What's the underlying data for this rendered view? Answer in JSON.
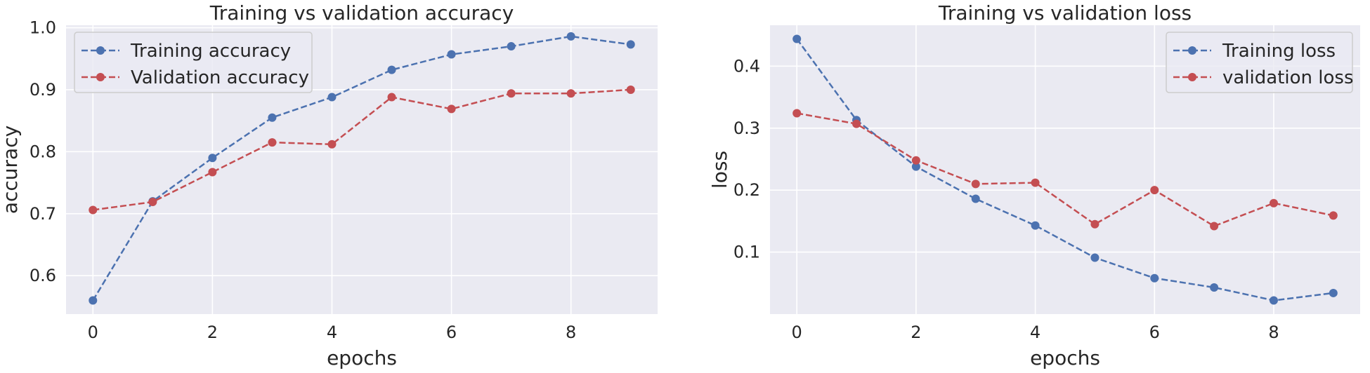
{
  "chart_data": [
    {
      "type": "line",
      "title": "Training vs validation accuracy",
      "xlabel": "epochs",
      "ylabel": "accuracy",
      "x": [
        0,
        1,
        2,
        3,
        4,
        5,
        6,
        7,
        8,
        9
      ],
      "xlim": [
        -0.45,
        9.45
      ],
      "ylim": [
        0.538,
        1.004
      ],
      "xticks": [
        0,
        2,
        4,
        6,
        8
      ],
      "yticks": [
        0.6,
        0.7,
        0.8,
        0.9,
        1.0
      ],
      "ytick_labels": [
        "0.6",
        "0.7",
        "0.8",
        "0.9",
        "1.0"
      ],
      "grid": true,
      "legend_position": "top-left",
      "series": [
        {
          "name": "Training accuracy",
          "color": "#4c72b0",
          "style": "dashed",
          "marker": "circle",
          "values": [
            0.56,
            0.72,
            0.79,
            0.855,
            0.888,
            0.932,
            0.957,
            0.97,
            0.986,
            0.973
          ]
        },
        {
          "name": "Validation accuracy",
          "color": "#c44e52",
          "style": "dashed",
          "marker": "circle",
          "values": [
            0.706,
            0.719,
            0.767,
            0.815,
            0.812,
            0.888,
            0.869,
            0.894,
            0.894,
            0.9
          ]
        }
      ]
    },
    {
      "type": "line",
      "title": "Training vs validation loss",
      "xlabel": "epochs",
      "ylabel": "loss",
      "x": [
        0,
        1,
        2,
        3,
        4,
        5,
        6,
        7,
        8,
        9
      ],
      "xlim": [
        -0.45,
        9.45
      ],
      "ylim": [
        0.0,
        0.466
      ],
      "xticks": [
        0,
        2,
        4,
        6,
        8
      ],
      "yticks": [
        0.1,
        0.2,
        0.3,
        0.4
      ],
      "ytick_labels": [
        "0.1",
        "0.2",
        "0.3",
        "0.4"
      ],
      "grid": true,
      "legend_position": "top-right",
      "series": [
        {
          "name": "Training loss",
          "color": "#4c72b0",
          "style": "dashed",
          "marker": "circle",
          "values": [
            0.444,
            0.313,
            0.238,
            0.186,
            0.143,
            0.091,
            0.058,
            0.043,
            0.022,
            0.034
          ]
        },
        {
          "name": "validation loss",
          "color": "#c44e52",
          "style": "dashed",
          "marker": "circle",
          "values": [
            0.324,
            0.307,
            0.248,
            0.21,
            0.212,
            0.145,
            0.2,
            0.142,
            0.179,
            0.159
          ]
        }
      ]
    }
  ]
}
